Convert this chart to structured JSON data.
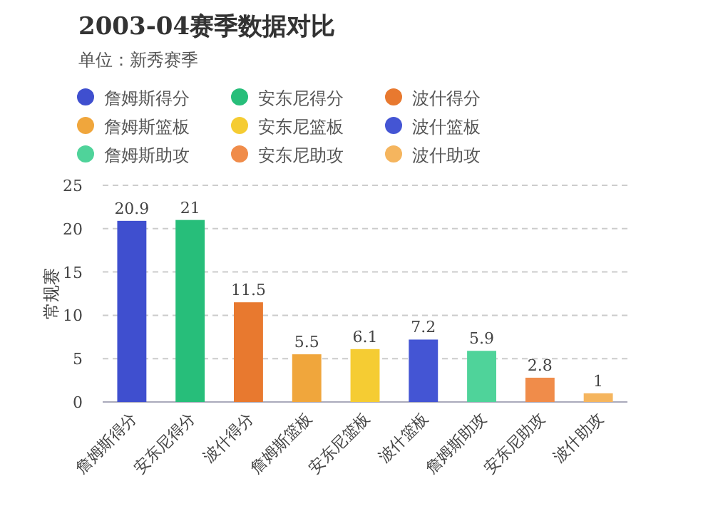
{
  "chart_data": {
    "type": "bar",
    "title": "2003-04赛季数据对比",
    "subtitle": "单位：新秀赛季",
    "ylabel": "常规赛",
    "categories": [
      "詹姆斯得分",
      "安东尼得分",
      "波什得分",
      "詹姆斯篮板",
      "安东尼篮板",
      "波什篮板",
      "詹姆斯助攻",
      "安东尼助攻",
      "波什助攻"
    ],
    "series": [
      {
        "name": "詹姆斯得分",
        "color": "#3f4fcf",
        "values": [
          20.9,
          null,
          null,
          null,
          null,
          null,
          null,
          null,
          null
        ]
      },
      {
        "name": "安东尼得分",
        "color": "#27be7a",
        "values": [
          null,
          21,
          null,
          null,
          null,
          null,
          null,
          null,
          null
        ]
      },
      {
        "name": "波什得分",
        "color": "#e8792f",
        "values": [
          null,
          null,
          11.5,
          null,
          null,
          null,
          null,
          null,
          null
        ]
      },
      {
        "name": "詹姆斯篮板",
        "color": "#f0a63c",
        "values": [
          null,
          null,
          null,
          5.5,
          null,
          null,
          null,
          null,
          null
        ]
      },
      {
        "name": "安东尼篮板",
        "color": "#f5cc33",
        "values": [
          null,
          null,
          null,
          null,
          6.1,
          null,
          null,
          null,
          null
        ]
      },
      {
        "name": "波什篮板",
        "color": "#4455d4",
        "values": [
          null,
          null,
          null,
          null,
          null,
          7.2,
          null,
          null,
          null
        ]
      },
      {
        "name": "詹姆斯助攻",
        "color": "#4fd39a",
        "values": [
          null,
          null,
          null,
          null,
          null,
          null,
          5.9,
          null,
          null
        ]
      },
      {
        "name": "安东尼助攻",
        "color": "#f08c4a",
        "values": [
          null,
          null,
          null,
          null,
          null,
          null,
          null,
          2.8,
          null
        ]
      },
      {
        "name": "波什助攻",
        "color": "#f5b55e",
        "values": [
          null,
          null,
          null,
          null,
          null,
          null,
          null,
          null,
          1
        ]
      }
    ],
    "ylim": [
      0,
      25
    ],
    "yticks": [
      0,
      5,
      10,
      15,
      20,
      25
    ],
    "grid": "y",
    "data_labels": true,
    "legend": "top"
  }
}
